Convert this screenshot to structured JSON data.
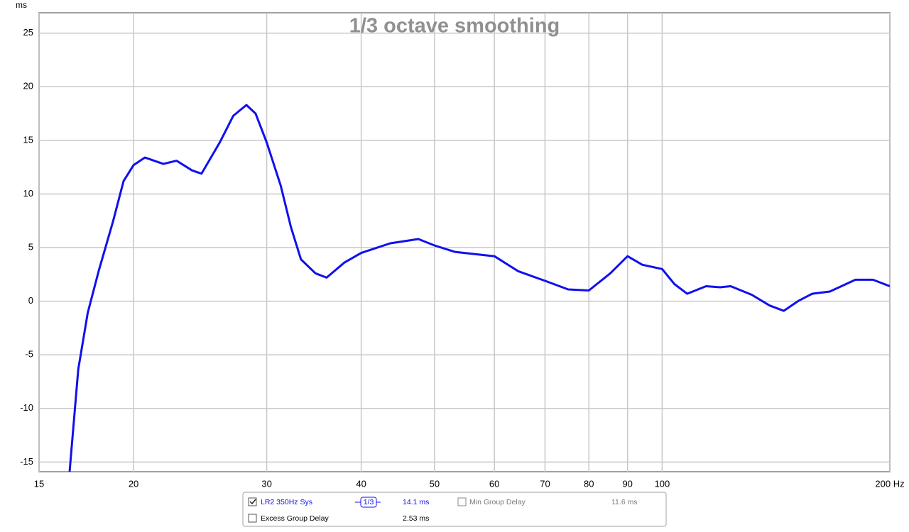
{
  "chart_data": {
    "type": "line",
    "title": "1/3 octave smoothing",
    "y_label": "ms",
    "x": [
      16.46,
      16.9,
      17.4,
      18.0,
      18.8,
      19.4,
      20.0,
      20.7,
      21.9,
      22.8,
      23.9,
      24.6,
      26.0,
      27.1,
      28.2,
      29.0,
      30.0,
      31.3,
      32.3,
      33.3,
      34.8,
      36.0,
      38.0,
      40.0,
      43.7,
      47.6,
      50.0,
      53.2,
      60.0,
      64.5,
      70.0,
      75.1,
      80.0,
      85.4,
      90.0,
      94.1,
      100.0,
      103.8,
      107.9,
      114.3,
      119.3,
      123.2,
      131.4,
      138.7,
      144.8,
      151.2,
      157.9,
      166.6,
      180.1,
      190.0,
      200.0
    ],
    "series": [
      {
        "name": "LR2 350Hz Sys",
        "color": "#1010ee",
        "values": [
          -15.9,
          -6.35,
          -1.06,
          2.9,
          7.5,
          11.2,
          12.7,
          13.4,
          12.8,
          13.1,
          12.2,
          11.9,
          14.8,
          17.3,
          18.3,
          17.5,
          14.8,
          10.8,
          6.9,
          3.9,
          2.6,
          2.2,
          3.6,
          4.5,
          5.4,
          5.8,
          5.2,
          4.6,
          4.2,
          2.8,
          1.9,
          1.1,
          1.0,
          2.6,
          4.2,
          3.4,
          3.0,
          1.6,
          0.7,
          1.4,
          1.3,
          1.4,
          0.6,
          -0.4,
          -0.9,
          0.0,
          0.7,
          0.9,
          2.0,
          2.0,
          1.4
        ]
      }
    ],
    "xlim": [
      15,
      200
    ],
    "xlog": true,
    "xticks": [
      15,
      20,
      30,
      40,
      50,
      60,
      70,
      80,
      90,
      100,
      {
        "value": 200,
        "label": "200 Hz"
      }
    ],
    "ylim": [
      -15.9,
      26.9
    ],
    "yticks": [
      -15,
      -10,
      -5,
      0,
      5,
      10,
      15,
      20,
      25
    ],
    "grid": true,
    "legend_panel": {
      "smoothing": "1/3",
      "trace_value": "14.1 ms",
      "min_group_delay": "Min Group Delay",
      "min_value": "11.6 ms",
      "excess_group_delay": "Excess Group Delay",
      "excess_value": "2.53 ms"
    }
  }
}
